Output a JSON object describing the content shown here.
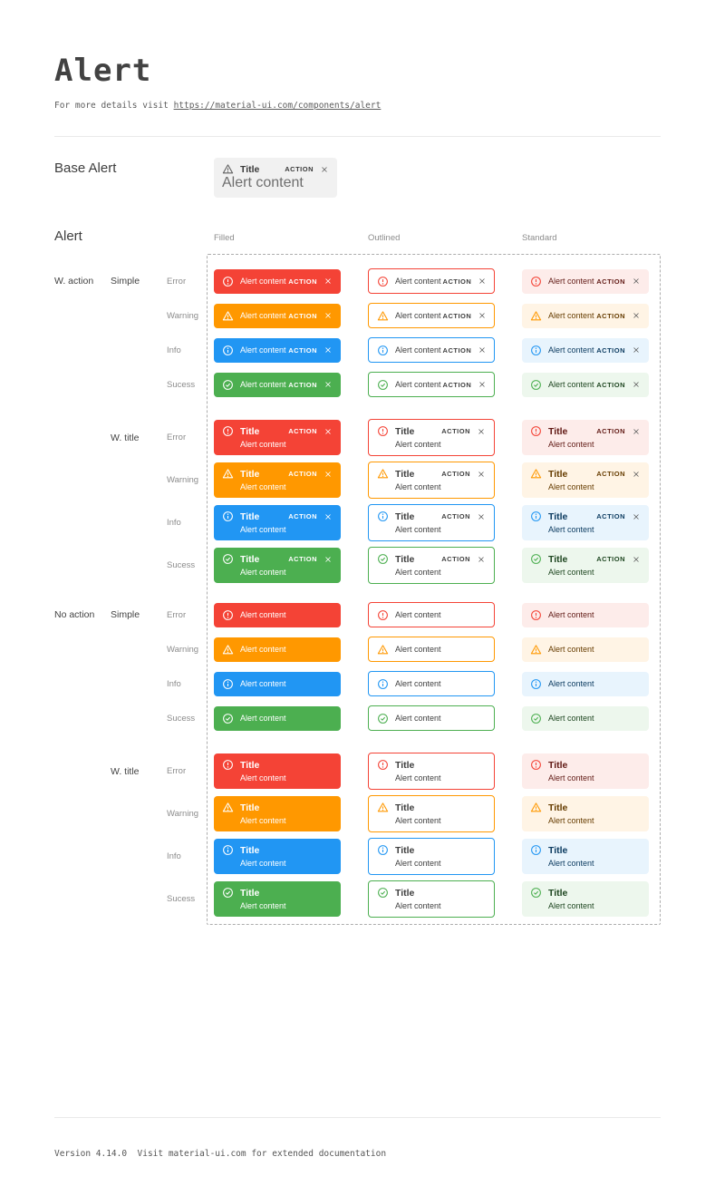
{
  "page": {
    "title": "Alert",
    "subtitle_prefix": "For more details visit ",
    "subtitle_link": "https://material-ui.com/components/alert",
    "footer": "Version 4.14.0  Visit material-ui.com for extended documentation"
  },
  "base_alert": {
    "section_label": "Base Alert",
    "title": "Title",
    "content": "Alert content",
    "action_label": "ACTION",
    "bg": "#f1f1f1",
    "icon_color": "#5f5f5f"
  },
  "alert_section": {
    "label": "Alert",
    "columns": [
      "Filled",
      "Outlined",
      "Standard"
    ],
    "texts": {
      "title": "Title",
      "content": "Alert content",
      "action": "ACTION"
    },
    "severities": [
      {
        "label": "Error",
        "key": "error",
        "color": "#f44336",
        "standard_bg": "#fdecea",
        "standard_fg": "#611a15"
      },
      {
        "label": "Warning",
        "key": "warning",
        "color": "#ff9800",
        "standard_bg": "#fff4e5",
        "standard_fg": "#663c00"
      },
      {
        "label": "Info",
        "key": "info",
        "color": "#2196f3",
        "standard_bg": "#e8f4fd",
        "standard_fg": "#0d3c61"
      },
      {
        "label": "Sucess",
        "key": "success",
        "color": "#4caf50",
        "standard_bg": "#edf7ed",
        "standard_fg": "#1e4620"
      }
    ],
    "groups": [
      {
        "action_label": "W. action",
        "variant_label": "Simple",
        "with_title": false,
        "with_action": true
      },
      {
        "action_label": "",
        "variant_label": "W. title",
        "with_title": true,
        "with_action": true
      },
      {
        "action_label": "No action",
        "variant_label": "Simple",
        "with_title": false,
        "with_action": false
      },
      {
        "action_label": "",
        "variant_label": "W. title",
        "with_title": true,
        "with_action": false
      }
    ]
  }
}
